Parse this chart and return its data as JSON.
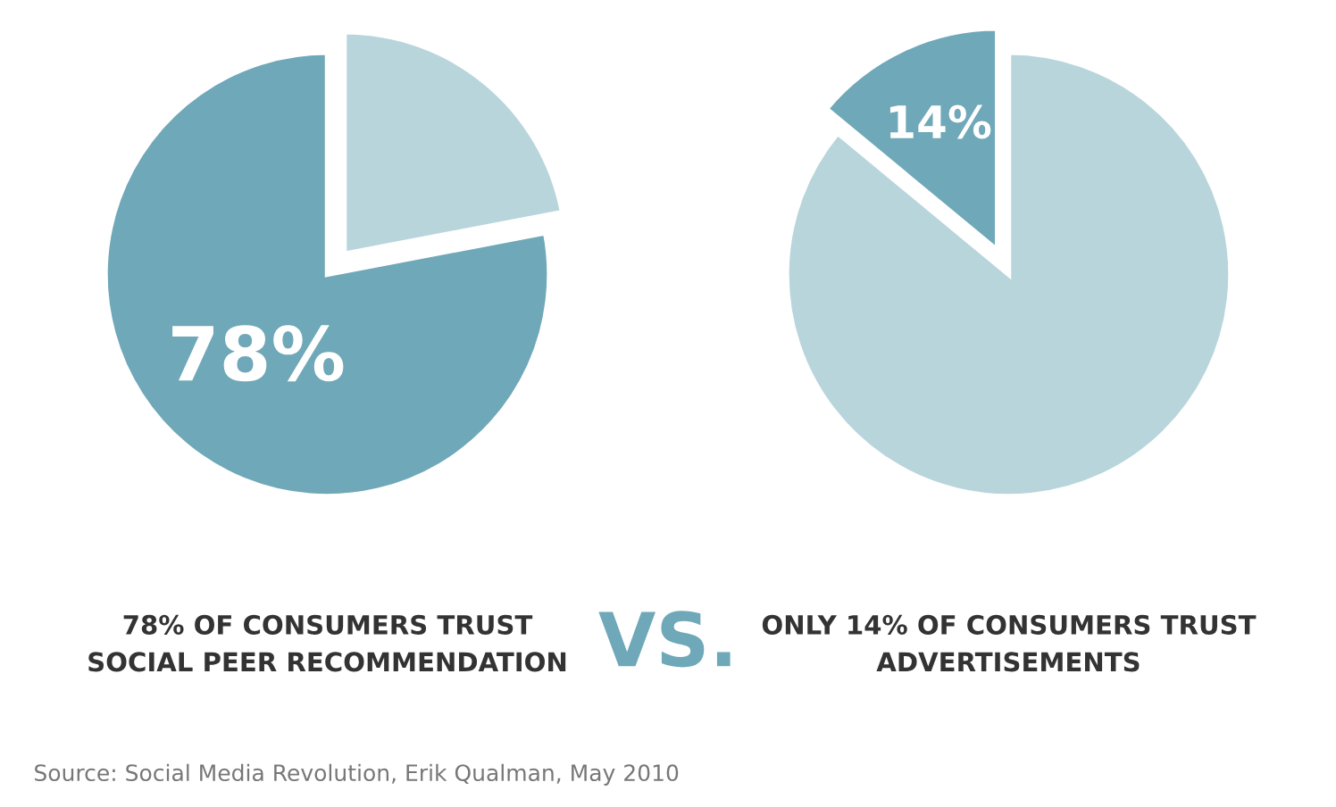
{
  "chart_data": [
    {
      "type": "pie",
      "title": "78% OF CONSUMERS TRUST\nSOCIAL PEER RECOMMENDATION",
      "categories": [
        null,
        null
      ],
      "values": [
        78,
        22
      ],
      "colors": [
        "#6fa8b8",
        "#b9d5dc"
      ],
      "value_labels": [
        "78%",
        null
      ],
      "annotations": [
        "VS."
      ]
    },
    {
      "type": "pie",
      "title": "ONLY 14% OF CONSUMERS TRUST\nADVERTISEMENTS",
      "categories": [
        null,
        null
      ],
      "values": [
        14,
        86
      ],
      "colors": [
        "#6fa8b8",
        "#b9d5dc"
      ],
      "value_labels": [
        "14%",
        null
      ],
      "annotations": [
        "Source: Social Media Revolution, Erik Qualman, May 2010"
      ]
    }
  ]
}
